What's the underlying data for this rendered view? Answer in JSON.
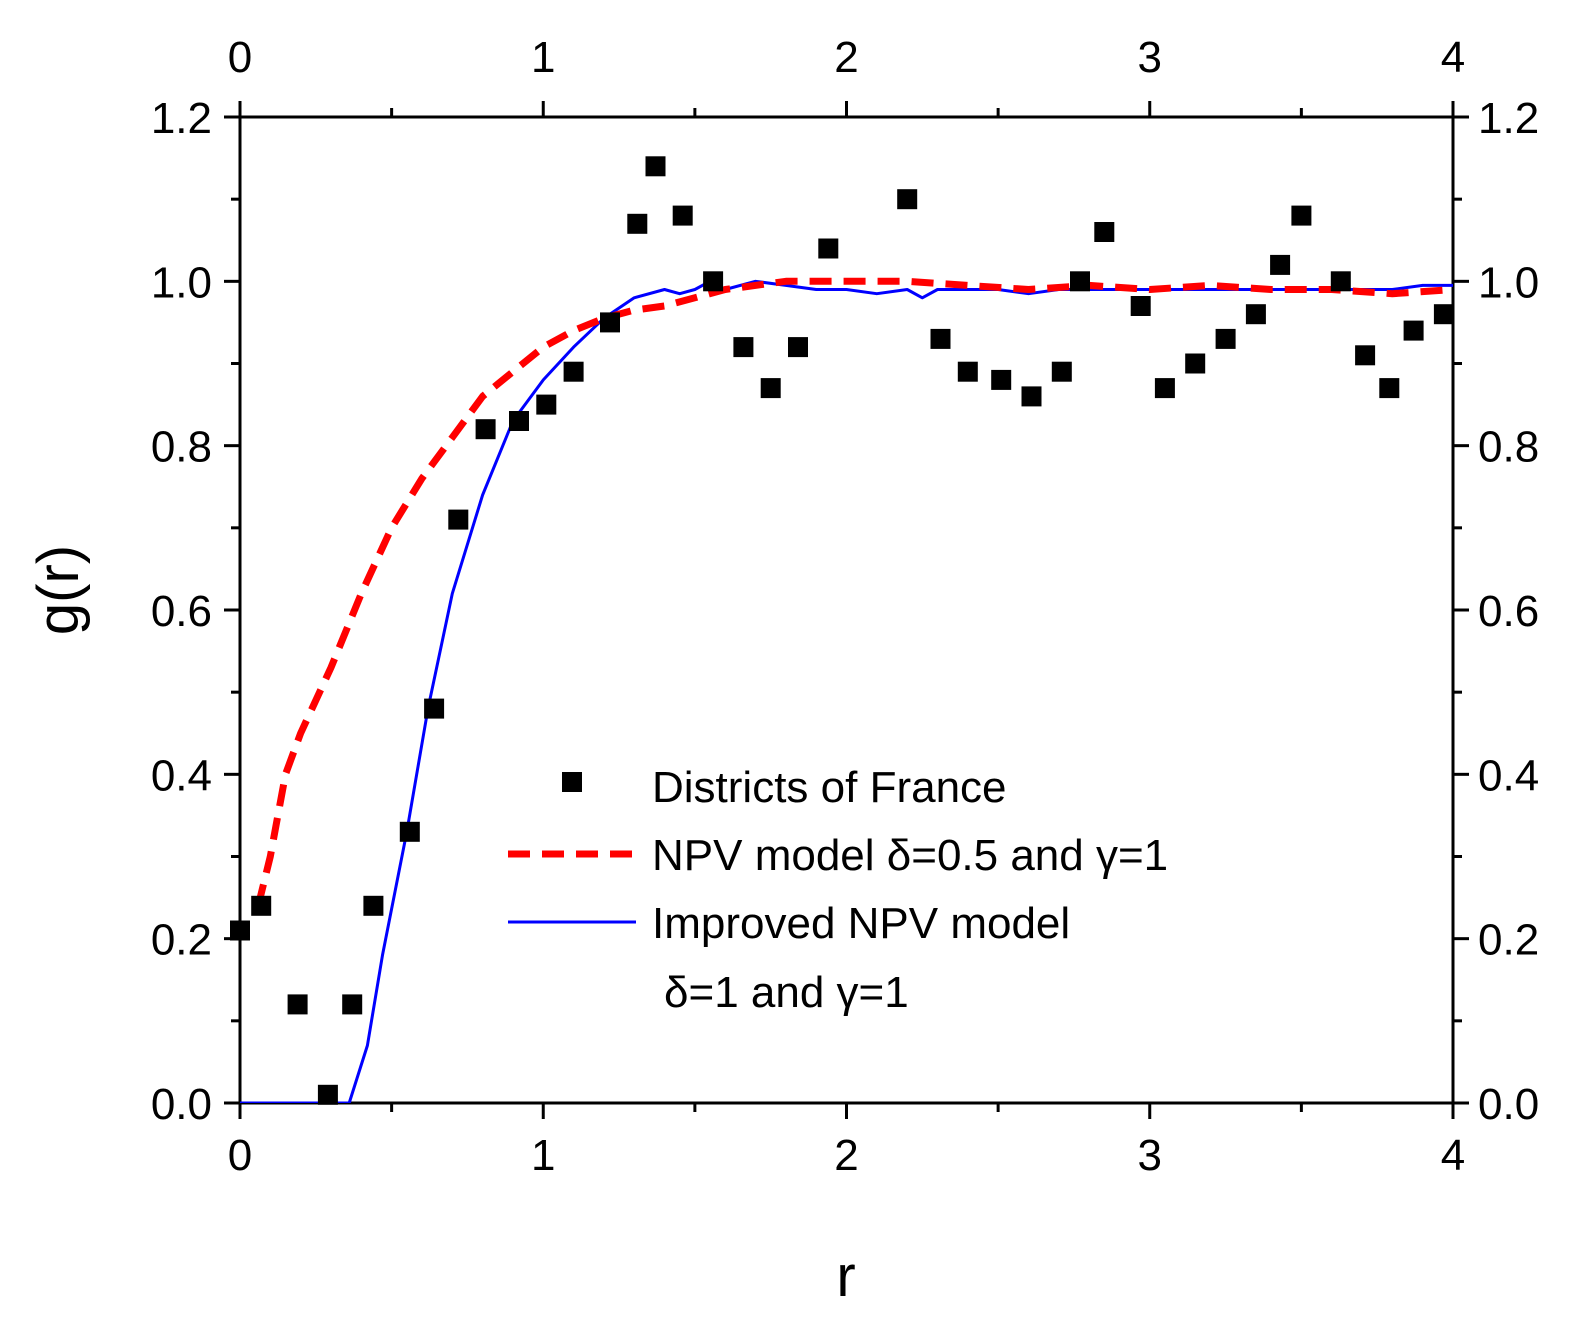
{
  "chart_data": {
    "type": "scatter",
    "xlabel": "r",
    "ylabel": "g(r)",
    "xlim": [
      0,
      4
    ],
    "ylim": [
      0,
      1.2
    ],
    "x_ticks": [
      "0",
      "1",
      "2",
      "3",
      "4"
    ],
    "y_ticks": [
      "0.0",
      "0.2",
      "0.4",
      "0.6",
      "0.8",
      "1.0",
      "1.2"
    ],
    "grid": false,
    "legend_position": "lower-center",
    "series": [
      {
        "name": "Districts of France",
        "kind": "markers",
        "marker": "square",
        "color": "#000000",
        "x": [
          0.0,
          0.07,
          0.19,
          0.29,
          0.37,
          0.44,
          0.56,
          0.64,
          0.72,
          0.81,
          0.92,
          1.01,
          1.1,
          1.22,
          1.31,
          1.37,
          1.46,
          1.56,
          1.66,
          1.75,
          1.84,
          1.94,
          2.2,
          2.31,
          2.4,
          2.51,
          2.61,
          2.71,
          2.77,
          2.85,
          2.97,
          3.05,
          3.15,
          3.25,
          3.35,
          3.43,
          3.5,
          3.63,
          3.71,
          3.79,
          3.87,
          3.97
        ],
        "y": [
          0.21,
          0.24,
          0.12,
          0.01,
          0.12,
          0.24,
          0.33,
          0.48,
          0.71,
          0.82,
          0.83,
          0.85,
          0.89,
          0.95,
          1.07,
          1.14,
          1.08,
          1.0,
          0.92,
          0.87,
          0.92,
          1.04,
          1.1,
          0.93,
          0.89,
          0.88,
          0.86,
          0.89,
          1.0,
          1.06,
          0.97,
          0.87,
          0.9,
          0.93,
          0.96,
          1.02,
          1.08,
          1.0,
          0.91,
          0.87,
          0.94,
          0.96
        ]
      },
      {
        "name": "NPV model δ=0.5 and γ=1",
        "kind": "line",
        "dash": "dashed",
        "color": "#ff0000",
        "x": [
          0.06,
          0.1,
          0.15,
          0.2,
          0.3,
          0.4,
          0.5,
          0.6,
          0.7,
          0.8,
          0.9,
          1.0,
          1.1,
          1.2,
          1.3,
          1.4,
          1.5,
          1.6,
          1.8,
          2.0,
          2.2,
          2.4,
          2.6,
          2.8,
          3.0,
          3.2,
          3.4,
          3.6,
          3.8,
          4.0
        ],
        "y": [
          0.24,
          0.3,
          0.4,
          0.45,
          0.53,
          0.62,
          0.7,
          0.76,
          0.81,
          0.86,
          0.89,
          0.92,
          0.94,
          0.955,
          0.965,
          0.97,
          0.98,
          0.99,
          1.0,
          1.0,
          1.0,
          0.995,
          0.99,
          0.995,
          0.99,
          0.995,
          0.99,
          0.99,
          0.985,
          0.99
        ]
      },
      {
        "name": "Improved NPV model",
        "name_line2": "δ=1 and γ=1",
        "kind": "line",
        "dash": "solid",
        "color": "#0000ff",
        "x": [
          0.0,
          0.36,
          0.42,
          0.47,
          0.55,
          0.62,
          0.7,
          0.8,
          0.9,
          1.0,
          1.1,
          1.2,
          1.3,
          1.4,
          1.45,
          1.5,
          1.55,
          1.6,
          1.7,
          1.8,
          1.9,
          2.0,
          2.1,
          2.2,
          2.25,
          2.3,
          2.4,
          2.5,
          2.6,
          2.7,
          2.8,
          2.9,
          3.0,
          3.2,
          3.4,
          3.6,
          3.8,
          3.9,
          4.0
        ],
        "y": [
          0.0,
          0.0,
          0.07,
          0.18,
          0.33,
          0.48,
          0.62,
          0.74,
          0.83,
          0.88,
          0.92,
          0.955,
          0.98,
          0.99,
          0.985,
          0.99,
          1.0,
          0.99,
          1.0,
          0.995,
          0.99,
          0.99,
          0.985,
          0.99,
          0.98,
          0.99,
          0.99,
          0.99,
          0.985,
          0.99,
          0.99,
          0.99,
          0.99,
          0.99,
          0.99,
          0.99,
          0.99,
          0.995,
          0.995
        ]
      }
    ]
  }
}
